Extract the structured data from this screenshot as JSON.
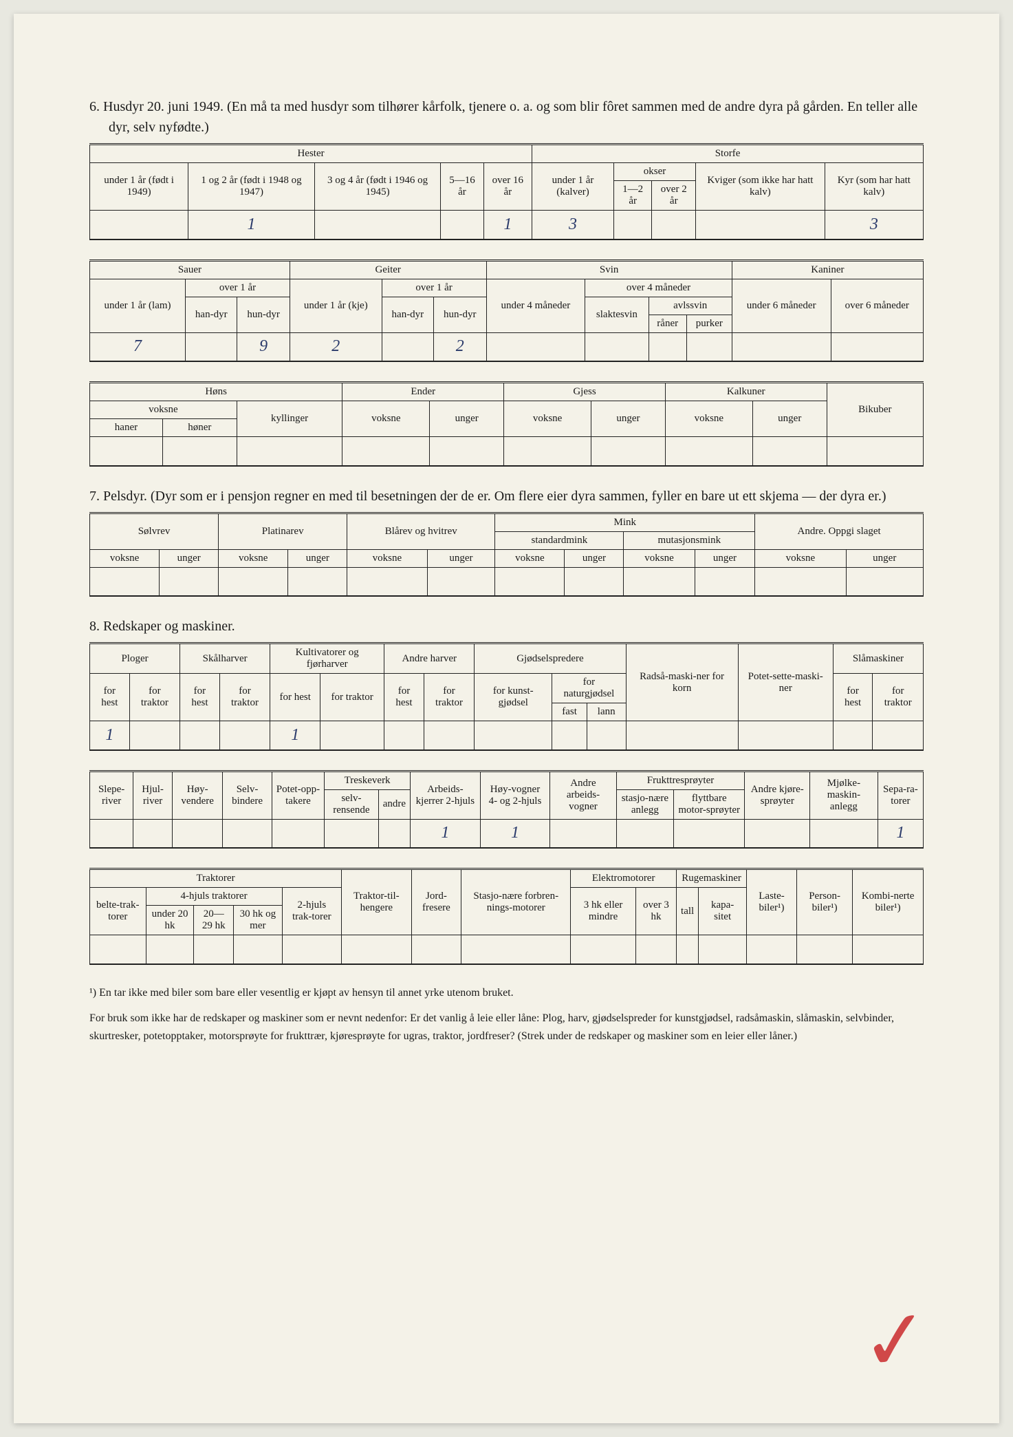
{
  "section6": {
    "heading": "6. Husdyr 20. juni 1949. (En må ta med husdyr som tilhører kårfolk, tjenere o. a. og som blir fôret sammen med de andre dyra på gården. En teller alle dyr, selv nyfødte.)",
    "hester_label": "Hester",
    "storfe_label": "Storfe",
    "hester_cols": {
      "c1": "under 1 år (født i 1949)",
      "c2": "1 og 2 år (født i 1948 og 1947)",
      "c3": "3 og 4 år (født i 1946 og 1945)",
      "c4": "5—16 år",
      "c5": "over 16 år"
    },
    "storfe_cols": {
      "c1": "under 1 år (kalver)",
      "okser": "okser",
      "okser1": "1—2 år",
      "okser2": "over 2 år",
      "kviger": "Kviger (som ikke har hatt kalv)",
      "kyr": "Kyr (som har hatt kalv)"
    },
    "values": {
      "h2": "1",
      "h5": "1",
      "s1": "3",
      "kyr": "3"
    },
    "sauer": "Sauer",
    "geiter": "Geiter",
    "svin": "Svin",
    "kaniner": "Kaniner",
    "under1ar_lam": "under 1 år (lam)",
    "over1ar": "over 1 år",
    "handyr": "han-dyr",
    "hundyr": "hun-dyr",
    "under1ar_kje": "under 1 år (kje)",
    "under4mnd": "under 4 måneder",
    "over4mnd": "over 4 måneder",
    "slaktesvin": "slaktesvin",
    "avlssvin": "avlssvin",
    "raner": "råner",
    "purker": "purker",
    "under6mnd": "under 6 måneder",
    "over6mnd": "over 6 måneder",
    "values2": {
      "sau_lam": "7",
      "sau_hun": "9",
      "geit_kje": "2",
      "geit_han": "2"
    },
    "hons": "Høns",
    "ender": "Ender",
    "gjess": "Gjess",
    "kalkuner": "Kalkuner",
    "bikuber": "Bikuber",
    "voksne": "voksne",
    "haner": "haner",
    "honer": "høner",
    "kyllinger": "kyllinger",
    "unger": "unger"
  },
  "section7": {
    "heading": "7. Pelsdyr. (Dyr som er i pensjon regner en med til besetningen der de er. Om flere eier dyra sammen, fyller en bare ut ett skjema — der dyra er.)",
    "solvrev": "Sølvrev",
    "platinarev": "Platinarev",
    "blarev": "Blårev og hvitrev",
    "mink": "Mink",
    "standardmink": "standardmink",
    "mutasjonsmink": "mutasjonsmink",
    "andre": "Andre. Oppgi slaget",
    "voksne": "voksne",
    "unger": "unger"
  },
  "section8": {
    "heading": "8. Redskaper og maskiner.",
    "ploger": "Ploger",
    "skalharver": "Skålharver",
    "kultivatorer": "Kultivatorer og fjørharver",
    "andreharver": "Andre harver",
    "gjodselspredere": "Gjødselspredere",
    "radsamaskiner": "Radså-maski-ner for korn",
    "potetsette": "Potet-sette-maski-ner",
    "slamaskiner": "Slåmaskiner",
    "forhest": "for hest",
    "fortraktor": "for traktor",
    "forkunstgjodsel": "for kunst-gjødsel",
    "fornaturgjodsel": "for naturgjødsel",
    "fast": "fast",
    "lann": "lann",
    "values1": {
      "plog_hest": "1",
      "kult_hest": "1"
    },
    "sleperiver": "Slepe-river",
    "hjulriver": "Hjul-river",
    "hoyvendere": "Høy-vendere",
    "selvbindere": "Selv-bindere",
    "potetopptakere": "Potet-opp-takere",
    "treskeverk": "Treskeverk",
    "selvrensende": "selv-rensende",
    "andre": "andre",
    "arbeidskjerrer": "Arbeids-kjerrer 2-hjuls",
    "hoyvogner": "Høy-vogner 4- og 2-hjuls",
    "andrearbeidsvogner": "Andre arbeids-vogner",
    "frukttresproyter": "Frukttresprøyter",
    "stasjonaere": "stasjo-nære anlegg",
    "flyttbare": "flyttbare motor-sprøyter",
    "andrekjore": "Andre kjøre-sprøyter",
    "mjolke": "Mjølke-maskin-anlegg",
    "separatorer": "Sepa-ra-torer",
    "values2": {
      "arbeidskjerrer": "1",
      "hoyvogner": "1",
      "separatorer": "1"
    },
    "traktorer": "Traktorer",
    "beltetraktorer": "belte-trak-torer",
    "fhjulstraktorer": "4-hjuls traktorer",
    "under20hk": "under 20 hk",
    "hk2029": "20—29 hk",
    "hk30ogmer": "30 hk og mer",
    "tohjulstraktorer": "2-hjuls trak-torer",
    "traktortilhengere": "Traktor-til-hengere",
    "jordfresere": "Jord-fresere",
    "stasjonaereforbrenning": "Stasjo-nære forbren-nings-motorer",
    "elektromotorer": "Elektromotorer",
    "hk3eller": "3 hk eller mindre",
    "over3hk": "over 3 hk",
    "rugemaskiner": "Rugemaskiner",
    "tall": "tall",
    "kapasitet": "kapa-sitet",
    "lastebiler": "Laste-biler¹)",
    "personbiler": "Person-biler¹)",
    "kombinerte": "Kombi-nerte biler¹)"
  },
  "footnote1": "¹) En tar ikke med biler som bare eller vesentlig er kjøpt av hensyn til annet yrke utenom bruket.",
  "footnote2": "For bruk som ikke har de redskaper og maskiner som er nevnt nedenfor: Er det vanlig å leie eller låne: Plog, harv, gjødselspreder for kunstgjødsel, radsåmaskin, slåmaskin, selvbinder, skurtresker, potetopptaker, motorsprøyte for frukttrær, kjøresprøyte for ugras, traktor, jordfreser? (Strek under de redskaper og maskiner som en leier eller låner.)"
}
